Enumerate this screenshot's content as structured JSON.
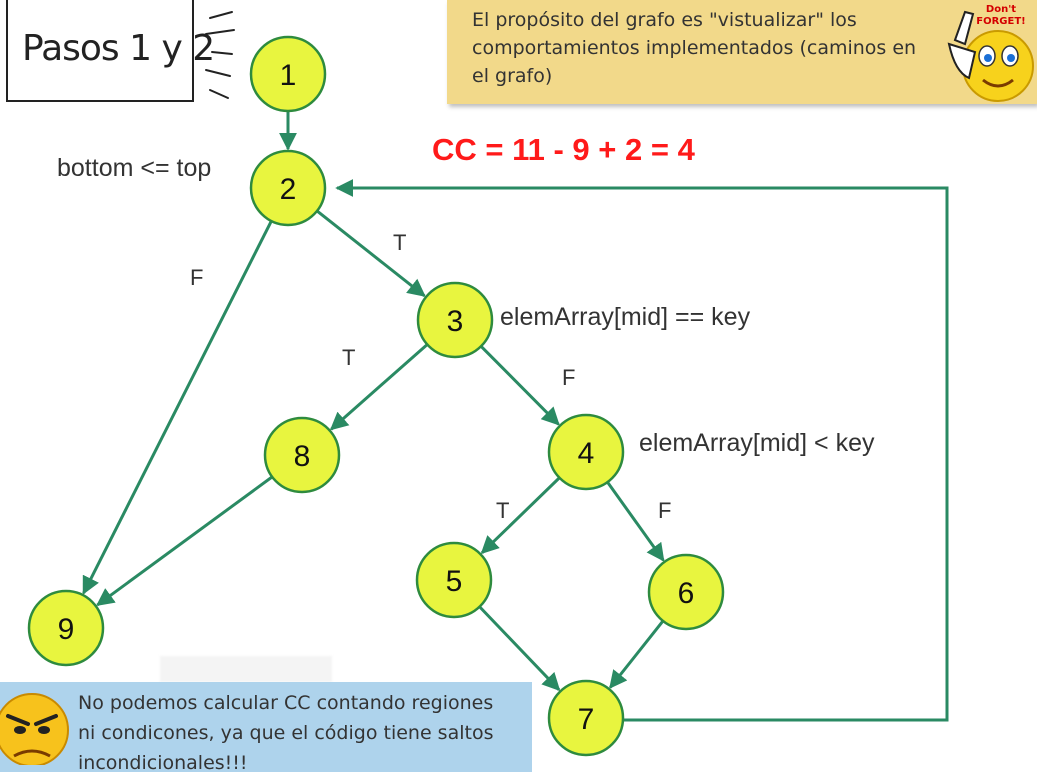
{
  "title": "Pasos 1 y 2",
  "note_top": "El propósito del grafo es \"vistualizar\" los\ncomportamientos implementados (caminos en\nel grafo)",
  "dont_forget": {
    "line1": "Don't",
    "line2": "FORGET!"
  },
  "cc_formula": "CC = 11 - 9 + 2 = 4",
  "condition_labels": {
    "node2": "bottom <= top",
    "node3": "elemArray[mid] == key",
    "node4": "elemArray[mid] < key"
  },
  "edge_labels": {
    "e2_3": "T",
    "e2_9": "F",
    "e3_8": "T",
    "e3_4": "F",
    "e4_5": "T",
    "e4_6": "F"
  },
  "nodes": [
    {
      "id": "1",
      "label": "1"
    },
    {
      "id": "2",
      "label": "2"
    },
    {
      "id": "3",
      "label": "3"
    },
    {
      "id": "4",
      "label": "4"
    },
    {
      "id": "5",
      "label": "5"
    },
    {
      "id": "6",
      "label": "6"
    },
    {
      "id": "7",
      "label": "7"
    },
    {
      "id": "8",
      "label": "8"
    },
    {
      "id": "9",
      "label": "9"
    }
  ],
  "edges": [
    {
      "from": "1",
      "to": "2"
    },
    {
      "from": "2",
      "to": "3"
    },
    {
      "from": "2",
      "to": "9"
    },
    {
      "from": "3",
      "to": "8"
    },
    {
      "from": "3",
      "to": "4"
    },
    {
      "from": "4",
      "to": "5"
    },
    {
      "from": "4",
      "to": "6"
    },
    {
      "from": "5",
      "to": "7"
    },
    {
      "from": "6",
      "to": "7"
    },
    {
      "from": "8",
      "to": "9"
    },
    {
      "from": "7",
      "to": "2"
    }
  ],
  "note_bottom": "No podemos calcular CC contando regiones\nni condicones, ya que el código tiene saltos\nincondicionales!!!",
  "colors": {
    "node_fill": "#e8f53f",
    "node_stroke": "#2e8b3e",
    "edge": "#2a8a63",
    "cc_text": "#ff1a1a",
    "note_top_bg": "#f2d98a",
    "note_bottom_bg": "#aed3ec"
  },
  "icons": [
    "thinking-lines-icon",
    "dont-forget-smiley-icon",
    "angry-smiley-icon"
  ]
}
